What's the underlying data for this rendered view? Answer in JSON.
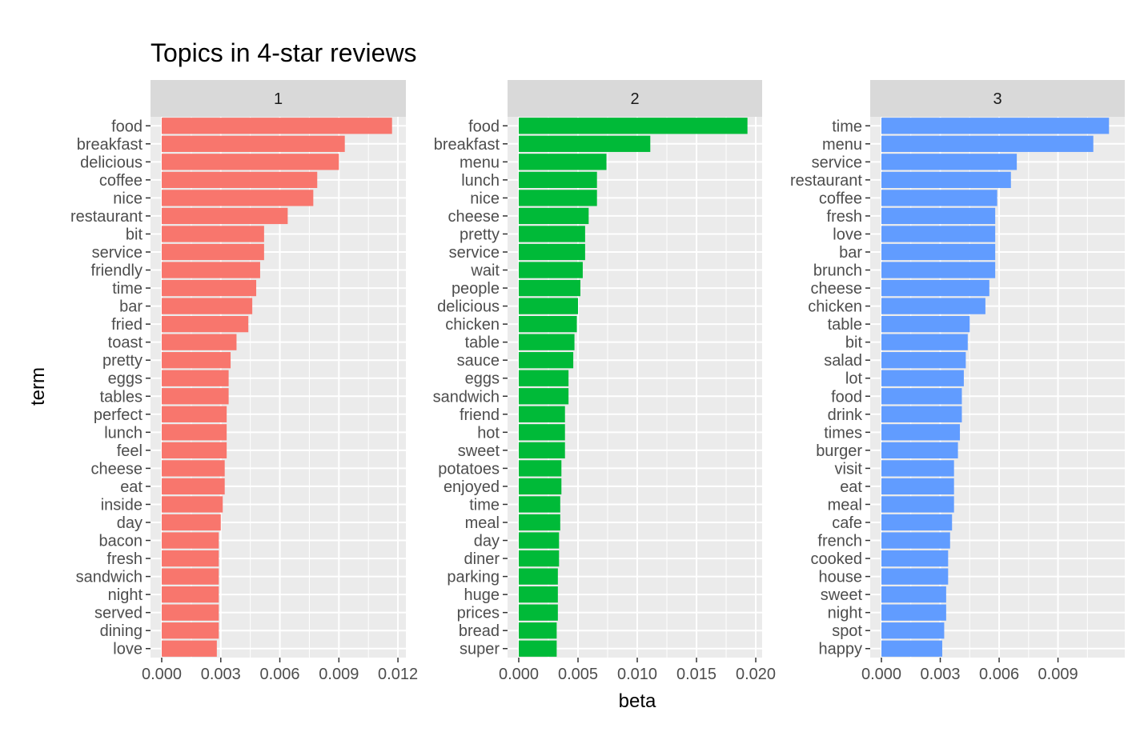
{
  "chart_data": {
    "type": "bar",
    "orientation": "horizontal",
    "title": "Topics in 4-star reviews",
    "xlabel": "beta",
    "ylabel": "term",
    "facets": [
      {
        "name": "1",
        "color": "#F8766D",
        "xlim": [
          0,
          0.0122
        ],
        "ticks": [
          0.0,
          0.003,
          0.006,
          0.009,
          0.012
        ],
        "tick_labels": [
          "0.000",
          "0.003",
          "0.006",
          "0.009",
          "0.012"
        ],
        "terms": [
          "food",
          "breakfast",
          "delicious",
          "coffee",
          "nice",
          "restaurant",
          "bit",
          "service",
          "friendly",
          "time",
          "bar",
          "fried",
          "toast",
          "pretty",
          "eggs",
          "tables",
          "perfect",
          "lunch",
          "feel",
          "cheese",
          "eat",
          "inside",
          "day",
          "bacon",
          "fresh",
          "sandwich",
          "night",
          "served",
          "dining",
          "love"
        ],
        "values": [
          0.0117,
          0.0093,
          0.009,
          0.0079,
          0.0077,
          0.0064,
          0.0052,
          0.0052,
          0.005,
          0.0048,
          0.0046,
          0.0044,
          0.0038,
          0.0035,
          0.0034,
          0.0034,
          0.0033,
          0.0033,
          0.0033,
          0.0032,
          0.0032,
          0.0031,
          0.003,
          0.0029,
          0.0029,
          0.0029,
          0.0029,
          0.0029,
          0.0029,
          0.0028
        ]
      },
      {
        "name": "2",
        "color": "#00BA38",
        "xlim": [
          0,
          0.0202
        ],
        "ticks": [
          0.0,
          0.005,
          0.01,
          0.015,
          0.02
        ],
        "tick_labels": [
          "0.000",
          "0.005",
          "0.010",
          "0.015",
          "0.020"
        ],
        "terms": [
          "food",
          "breakfast",
          "menu",
          "lunch",
          "nice",
          "cheese",
          "pretty",
          "service",
          "wait",
          "people",
          "delicious",
          "chicken",
          "table",
          "sauce",
          "eggs",
          "sandwich",
          "friend",
          "hot",
          "sweet",
          "potatoes",
          "enjoyed",
          "time",
          "meal",
          "day",
          "diner",
          "parking",
          "huge",
          "prices",
          "bread",
          "super"
        ],
        "values": [
          0.0193,
          0.0111,
          0.0074,
          0.0066,
          0.0066,
          0.0059,
          0.0056,
          0.0056,
          0.0054,
          0.0052,
          0.005,
          0.0049,
          0.0047,
          0.0046,
          0.0042,
          0.0042,
          0.0039,
          0.0039,
          0.0039,
          0.0036,
          0.0036,
          0.0035,
          0.0035,
          0.0034,
          0.0034,
          0.0033,
          0.0033,
          0.0033,
          0.0032,
          0.0032
        ]
      },
      {
        "name": "3",
        "color": "#619CFF",
        "xlim": [
          0,
          0.0122
        ],
        "ticks": [
          0.0,
          0.003,
          0.006,
          0.009
        ],
        "tick_labels": [
          "0.000",
          "0.003",
          "0.006",
          "0.009"
        ],
        "terms": [
          "time",
          "menu",
          "service",
          "restaurant",
          "coffee",
          "fresh",
          "love",
          "bar",
          "brunch",
          "cheese",
          "chicken",
          "table",
          "bit",
          "salad",
          "lot",
          "food",
          "drink",
          "times",
          "burger",
          "visit",
          "eat",
          "meal",
          "cafe",
          "french",
          "cooked",
          "house",
          "sweet",
          "night",
          "spot",
          "happy"
        ],
        "values": [
          0.0116,
          0.0108,
          0.0069,
          0.0066,
          0.0059,
          0.0058,
          0.0058,
          0.0058,
          0.0058,
          0.0055,
          0.0053,
          0.0045,
          0.0044,
          0.0043,
          0.0042,
          0.0041,
          0.0041,
          0.004,
          0.0039,
          0.0037,
          0.0037,
          0.0037,
          0.0036,
          0.0035,
          0.0034,
          0.0034,
          0.0033,
          0.0033,
          0.0032,
          0.0031
        ]
      }
    ],
    "grid": true,
    "legend": "none"
  }
}
